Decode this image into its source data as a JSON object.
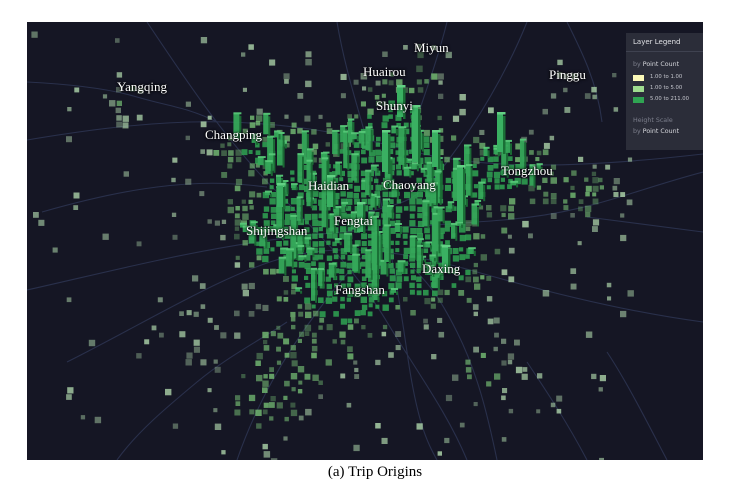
{
  "legend": {
    "title": "Layer Legend",
    "color_by_prefix": "by",
    "color_by_field": "Point Count",
    "height_scale_label": "Height Scale",
    "height_by_prefix": "by",
    "height_by_field": "Point Count",
    "ranges": [
      {
        "label": "1.00 to 1.00",
        "color": "#fbf9b8"
      },
      {
        "label": "1.00 to 5.00",
        "color": "#9fdc8f"
      },
      {
        "label": "5.00 to 211.00",
        "color": "#2fa452"
      }
    ]
  },
  "districts": [
    {
      "id": "miyun",
      "name": "Miyun"
    },
    {
      "id": "huairou",
      "name": "Huairou"
    },
    {
      "id": "pinggu",
      "name": "Pinggu"
    },
    {
      "id": "yangqing",
      "name": "Yangqing"
    },
    {
      "id": "shunyi",
      "name": "Shunyi"
    },
    {
      "id": "changping",
      "name": "Changping"
    },
    {
      "id": "tongzhou",
      "name": "Tongzhou"
    },
    {
      "id": "haidian",
      "name": "Haidian"
    },
    {
      "id": "chaoyang",
      "name": "Chaoyang"
    },
    {
      "id": "fengtai",
      "name": "Fengtai"
    },
    {
      "id": "shijingshan",
      "name": "Shijingshan"
    },
    {
      "id": "daxing",
      "name": "Daxing"
    },
    {
      "id": "fangshan",
      "name": "Fangshan"
    }
  ],
  "caption": "(a) Trip Origins",
  "colors": {
    "background": "#151624",
    "roads": "#2c3350",
    "cell_low": "#fbf9b8",
    "cell_mid": "#9fdc8f",
    "cell_high": "#2fa452"
  }
}
